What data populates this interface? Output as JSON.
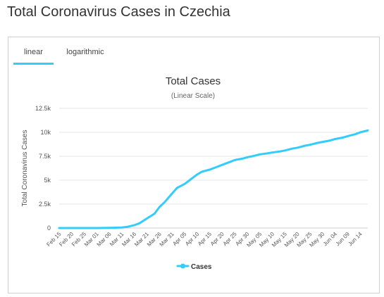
{
  "page": {
    "title": "Total Coronavirus Cases in Czechia"
  },
  "tabs": [
    {
      "label": "linear",
      "active": true
    },
    {
      "label": "logarithmic",
      "active": false
    }
  ],
  "colors": {
    "series": "#33ccff",
    "tab_underline": "#33ccff",
    "grid": "#e6e6e6"
  },
  "chart_data": {
    "type": "line",
    "title": "Total Cases",
    "subtitle": "(Linear Scale)",
    "ylabel": "Total Coronavirus Cases",
    "xlabel": "",
    "ylim": [
      0,
      12500
    ],
    "yticks": [
      {
        "value": 0,
        "label": "0"
      },
      {
        "value": 2500,
        "label": "2.5k"
      },
      {
        "value": 5000,
        "label": "5k"
      },
      {
        "value": 7500,
        "label": "7.5k"
      },
      {
        "value": 10000,
        "label": "10k"
      },
      {
        "value": 12500,
        "label": "12.5k"
      }
    ],
    "xticks": [
      "Feb 15",
      "Feb 20",
      "Feb 25",
      "Mar 01",
      "Mar 06",
      "Mar 11",
      "Mar 16",
      "Mar 21",
      "Mar 26",
      "Mar 31",
      "Apr 05",
      "Apr 10",
      "Apr 15",
      "Apr 20",
      "Apr 25",
      "Apr 30",
      "May 05",
      "May 10",
      "May 15",
      "May 20",
      "May 25",
      "May 30",
      "Jun 04",
      "Jun 09",
      "Jun 14"
    ],
    "grid": true,
    "legend_position": "bottom",
    "series": [
      {
        "name": "Cases",
        "x": [
          "Feb 15",
          "Feb 20",
          "Feb 25",
          "Mar 01",
          "Mar 06",
          "Mar 11",
          "Mar 13",
          "Mar 16",
          "Mar 18",
          "Mar 21",
          "Mar 24",
          "Mar 26",
          "Mar 28",
          "Mar 31",
          "Apr 02",
          "Apr 05",
          "Apr 07",
          "Apr 10",
          "Apr 12",
          "Apr 15",
          "Apr 18",
          "Apr 20",
          "Apr 23",
          "Apr 25",
          "Apr 28",
          "Apr 30",
          "May 02",
          "May 05",
          "May 08",
          "May 10",
          "May 13",
          "May 15",
          "May 18",
          "May 20",
          "May 23",
          "May 25",
          "May 28",
          "May 30",
          "Jun 02",
          "Jun 04",
          "Jun 07",
          "Jun 09",
          "Jun 12",
          "Jun 14",
          "Jun 17"
        ],
        "values": [
          0,
          0,
          0,
          3,
          20,
          50,
          120,
          300,
          500,
          1000,
          1500,
          2200,
          2700,
          3600,
          4200,
          4600,
          5000,
          5600,
          5900,
          6100,
          6400,
          6600,
          6900,
          7100,
          7250,
          7400,
          7500,
          7700,
          7800,
          7900,
          8000,
          8100,
          8300,
          8400,
          8600,
          8700,
          8900,
          9000,
          9150,
          9300,
          9450,
          9600,
          9800,
          10000,
          10200
        ]
      }
    ]
  }
}
